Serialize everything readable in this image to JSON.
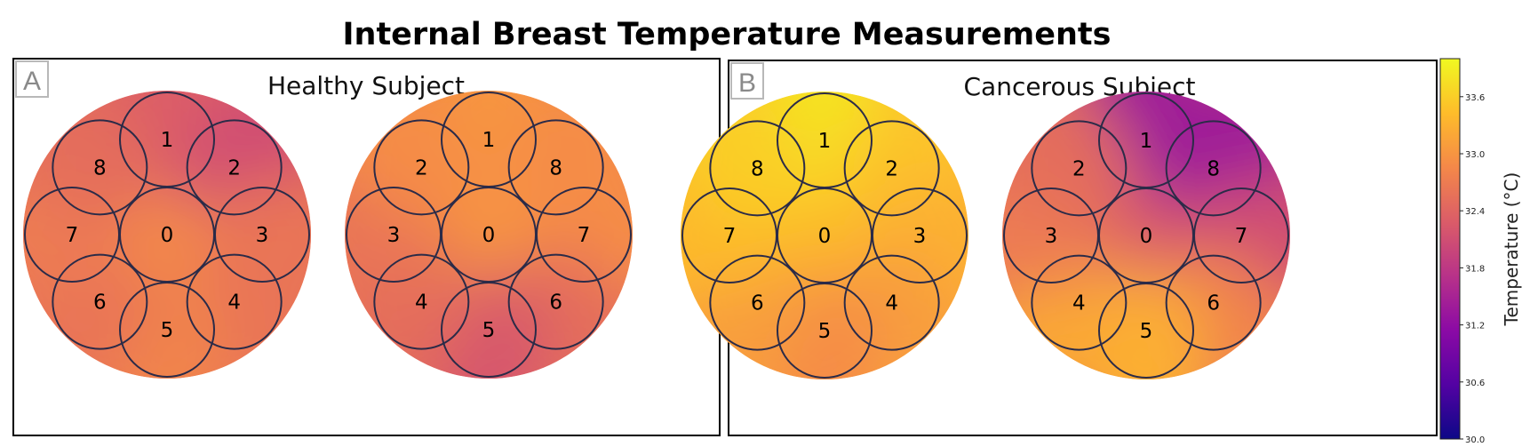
{
  "title": "Internal Breast Temperature Measurements",
  "colors": {
    "colormap": [
      "#0d0887",
      "#5302a3",
      "#8b0aa5",
      "#b83289",
      "#db5c68",
      "#f48849",
      "#febc2a",
      "#f0f921"
    ],
    "sensor_outline": "#2b2b48"
  },
  "chart_data": {
    "type": "heatmap",
    "colormap": "plasma",
    "value_range": [
      30.0,
      34.0
    ],
    "colorbar": {
      "label": "Temperature (°C)",
      "ticks": [
        "30.0",
        "30.6",
        "31.2",
        "31.8",
        "32.4",
        "33.0",
        "33.6"
      ]
    },
    "panels": [
      {
        "letter": "A",
        "title": "Healthy Subject",
        "breasts": [
          {
            "sensor_order": [
              "0",
              "1",
              "2",
              "3",
              "4",
              "5",
              "6",
              "7",
              "8"
            ],
            "temperatures": [
              32.9,
              32.3,
              32.1,
              32.6,
              32.6,
              32.8,
              32.6,
              32.7,
              32.5
            ]
          },
          {
            "sensor_order": [
              "0",
              "1",
              "8",
              "7",
              "6",
              "5",
              "4",
              "3",
              "2"
            ],
            "temperatures": [
              33.0,
              33.0,
              32.9,
              32.9,
              32.5,
              32.2,
              32.5,
              32.6,
              32.9
            ]
          }
        ]
      },
      {
        "letter": "B",
        "title": "Cancerous Subject",
        "breasts": [
          {
            "sensor_order": [
              "0",
              "1",
              "2",
              "3",
              "4",
              "5",
              "6",
              "7",
              "8"
            ],
            "temperatures": [
              33.4,
              33.8,
              33.5,
              33.3,
              33.1,
              32.9,
              33.1,
              33.4,
              33.6
            ]
          },
          {
            "sensor_order": [
              "0",
              "1",
              "8",
              "7",
              "6",
              "5",
              "4",
              "3",
              "2"
            ],
            "temperatures": [
              32.3,
              31.4,
              31.4,
              32.1,
              32.8,
              33.3,
              33.2,
              32.7,
              32.5
            ]
          }
        ]
      }
    ]
  }
}
